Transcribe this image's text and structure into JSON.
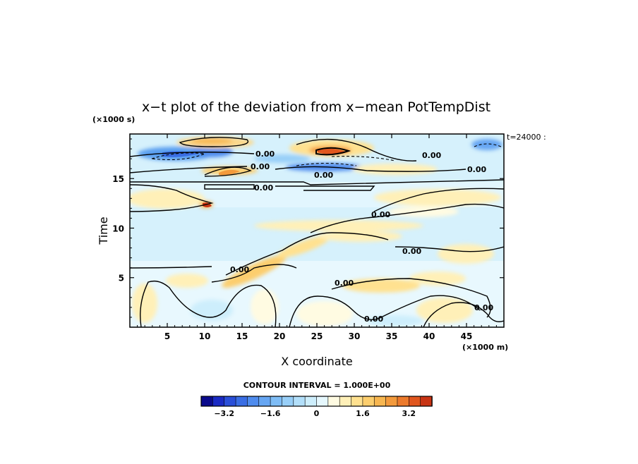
{
  "chart_data": {
    "type": "heatmap",
    "title": "x−t plot of the deviation from x−mean PotTempDist",
    "xlabel": "X coordinate",
    "ylabel": "Time",
    "x_unit": "(×1000 m)",
    "y_unit": "(×1000 s)",
    "time_stamp": "t=24000 :",
    "xlim": [
      0,
      50
    ],
    "ylim": [
      0,
      19.5
    ],
    "x_ticks": [
      5,
      10,
      15,
      20,
      25,
      30,
      35,
      40,
      45
    ],
    "y_ticks": [
      5,
      10,
      15
    ],
    "contour_interval_text": "CONTOUR INTERVAL = 1.000E+00",
    "contour_labels": [
      "0.00",
      "0.00",
      "0.00",
      "0.00",
      "0.00",
      "0.00",
      "0.00",
      "0.00",
      "0.00",
      "0.00",
      "0.00",
      "0.00"
    ],
    "colorbar": {
      "min": -4.0,
      "max": 4.0,
      "step": 0.4,
      "tick_values": [
        -3.2,
        -1.6,
        0,
        1.6,
        3.2
      ],
      "tick_labels": [
        "−3.2",
        "−1.6",
        "0",
        "1.6",
        "3.2"
      ],
      "colors": [
        "#0b0b8c",
        "#1a2bc4",
        "#2a4fd8",
        "#3a6ee4",
        "#4f8cee",
        "#66a6f3",
        "#7fbdf6",
        "#98cff8",
        "#b2dffa",
        "#cdeefc",
        "#e6f8fe",
        "#fffbe2",
        "#fff0b8",
        "#ffe190",
        "#fcce6e",
        "#f7b650",
        "#f39a3c",
        "#ec7a2c",
        "#e0561e",
        "#c83414"
      ]
    },
    "features": [
      {
        "kind": "negative",
        "x": 5,
        "t": 17.5,
        "value": -1.8
      },
      {
        "kind": "negative",
        "x": 9,
        "t": 17.2,
        "value": -1.5
      },
      {
        "kind": "positive",
        "x": 13,
        "t": 18.8,
        "value": 1.4
      },
      {
        "kind": "positive",
        "x": 27.5,
        "t": 17.8,
        "value": 2.8
      },
      {
        "kind": "positive",
        "x": 14,
        "t": 15.8,
        "value": 1.6
      },
      {
        "kind": "negative",
        "x": 27,
        "t": 16.5,
        "value": -1.2
      },
      {
        "kind": "negative",
        "x": 47,
        "t": 18.3,
        "value": -1.2
      },
      {
        "kind": "positive",
        "x": 3,
        "t": 12.5,
        "value": 0.8
      },
      {
        "kind": "positive",
        "x": 32,
        "t": 7.0,
        "value": 0.6
      },
      {
        "kind": "positive",
        "x": 15,
        "t": 5.0,
        "value": 0.7
      }
    ]
  }
}
